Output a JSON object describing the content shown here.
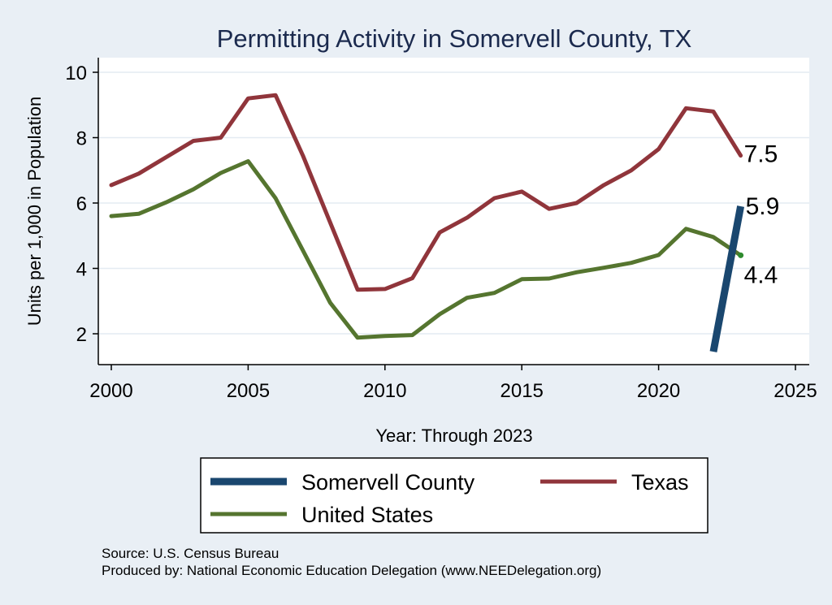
{
  "chart_data": {
    "type": "line",
    "title": "Permitting Activity in Somervell County, TX",
    "xlabel": "Year: Through 2023",
    "ylabel": "Units per 1,000 in Population",
    "xlim": [
      2000,
      2025
    ],
    "ylim": [
      1,
      10.4
    ],
    "xticks": [
      2000,
      2005,
      2010,
      2015,
      2020,
      2025
    ],
    "yticks": [
      2,
      4,
      6,
      8,
      10
    ],
    "grid": true,
    "legend_position": "bottom",
    "series": [
      {
        "name": "Somervell County",
        "color": "#1a476f",
        "x": [
          2022,
          2023
        ],
        "y": [
          1.45,
          5.9
        ],
        "end_label": "5.9"
      },
      {
        "name": "Texas",
        "color": "#90353b",
        "x": [
          2000,
          2001,
          2002,
          2003,
          2004,
          2005,
          2006,
          2007,
          2008,
          2009,
          2010,
          2011,
          2012,
          2013,
          2014,
          2015,
          2016,
          2017,
          2018,
          2019,
          2020,
          2021,
          2022,
          2023
        ],
        "y": [
          6.55,
          6.9,
          7.4,
          7.9,
          8.0,
          9.2,
          9.3,
          7.45,
          5.4,
          3.35,
          3.37,
          3.7,
          5.1,
          5.55,
          6.15,
          6.35,
          5.82,
          6.0,
          6.55,
          7.0,
          7.65,
          8.9,
          8.8,
          7.45
        ],
        "end_label": "7.5"
      },
      {
        "name": "United States",
        "color": "#55752f",
        "x": [
          2000,
          2001,
          2002,
          2003,
          2004,
          2005,
          2006,
          2007,
          2008,
          2009,
          2010,
          2011,
          2012,
          2013,
          2014,
          2015,
          2016,
          2017,
          2018,
          2019,
          2020,
          2021,
          2022,
          2023
        ],
        "y": [
          5.6,
          5.67,
          6.02,
          6.42,
          6.92,
          7.28,
          6.15,
          4.55,
          2.95,
          1.88,
          1.93,
          1.96,
          2.6,
          3.1,
          3.25,
          3.67,
          3.69,
          3.88,
          4.02,
          4.17,
          4.41,
          5.21,
          4.96,
          4.4
        ],
        "end_label": "4.4"
      }
    ]
  },
  "source_text": "Source: U.S. Census Bureau",
  "produced_text": "Produced by: National Economic Education Delegation (www.NEEDelegation.org)"
}
